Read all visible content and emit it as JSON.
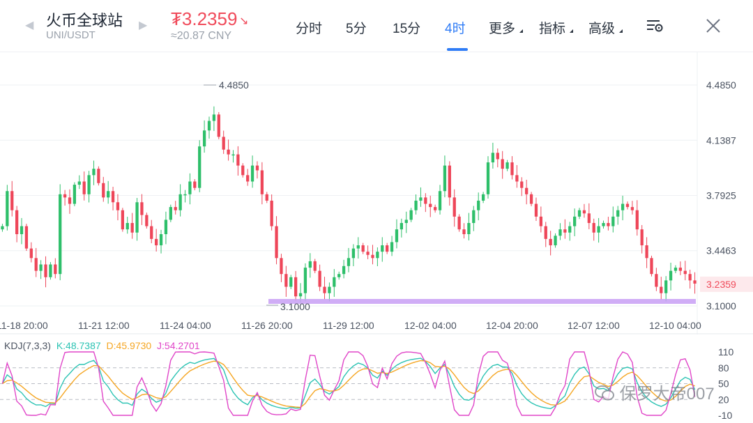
{
  "header": {
    "title": "火币全球站",
    "pair": "UNI/USDT",
    "price": "₮3.2359",
    "price_cny": "≈20.87 CNY",
    "tabs": [
      {
        "label": "分时"
      },
      {
        "label": "5分"
      },
      {
        "label": "15分"
      },
      {
        "label": "4时"
      },
      {
        "label": "更多"
      },
      {
        "label": "指标"
      },
      {
        "label": "高级"
      }
    ],
    "active_tab": "4时"
  },
  "chart_data": {
    "type": "candlestick",
    "y_axis_labels": [
      "4.4850",
      "4.1387",
      "3.7925",
      "3.4463",
      "3.1000"
    ],
    "ylim": [
      3.1,
      4.485
    ],
    "current_price_label": "3.2359",
    "max_label": "4.4850",
    "min_label": "3.1000",
    "x_axis_labels": [
      "11-18 20:00",
      "11-21 12:00",
      "11-24 04:00",
      "11-26 20:00",
      "11-29 12:00",
      "12-02 04:00",
      "12-04 20:00",
      "12-07 12:00",
      "12-10 04:00"
    ],
    "colors": {
      "up": "#2ebf6a",
      "down": "#ee4659",
      "highlight": "#c89ff5"
    },
    "close_path": [
      3.6,
      3.82,
      3.7,
      3.55,
      3.6,
      3.46,
      3.4,
      3.32,
      3.36,
      3.28,
      3.36,
      3.3,
      3.8,
      3.78,
      3.74,
      3.86,
      3.88,
      3.8,
      3.92,
      3.96,
      3.87,
      3.78,
      3.82,
      3.75,
      3.7,
      3.58,
      3.62,
      3.56,
      3.75,
      3.67,
      3.6,
      3.52,
      3.48,
      3.55,
      3.64,
      3.72,
      3.7,
      3.8,
      3.8,
      3.88,
      3.84,
      4.1,
      4.2,
      4.26,
      4.3,
      4.16,
      4.08,
      4.05,
      4.05,
      3.98,
      3.92,
      3.88,
      3.98,
      3.95,
      3.8,
      3.76,
      3.6,
      3.4,
      3.3,
      3.22,
      3.28,
      3.16,
      3.18,
      3.34,
      3.38,
      3.32,
      3.22,
      3.18,
      3.22,
      3.28,
      3.3,
      3.35,
      3.4,
      3.46,
      3.48,
      3.44,
      3.42,
      3.4,
      3.44,
      3.48,
      3.44,
      3.5,
      3.58,
      3.62,
      3.64,
      3.7,
      3.76,
      3.78,
      3.74,
      3.72,
      3.7,
      3.82,
      3.98,
      3.78,
      3.66,
      3.58,
      3.55,
      3.62,
      3.7,
      3.76,
      3.8,
      4.0,
      4.06,
      4.02,
      3.96,
      4.0,
      3.92,
      3.88,
      3.84,
      3.8,
      3.74,
      3.66,
      3.6,
      3.52,
      3.48,
      3.54,
      3.58,
      3.56,
      3.6,
      3.66,
      3.7,
      3.68,
      3.62,
      3.56,
      3.6,
      3.62,
      3.6,
      3.66,
      3.7,
      3.74,
      3.72,
      3.7,
      3.58,
      3.48,
      3.4,
      3.3,
      3.22,
      3.18,
      3.26,
      3.32,
      3.34,
      3.32,
      3.3,
      3.26,
      3.24
    ]
  },
  "kdj": {
    "label": "KDJ(7,3,3)",
    "k": "K:48.7387",
    "d": "D:45.9730",
    "j": "J:54.2701",
    "colors": {
      "k": "#2bc3b3",
      "d": "#f5a623",
      "j": "#e045c8"
    },
    "axis_labels": [
      "110",
      "80",
      "50",
      "20",
      "-10"
    ],
    "ylim": [
      -10,
      110
    ]
  },
  "watermark": "保罗大帝007"
}
